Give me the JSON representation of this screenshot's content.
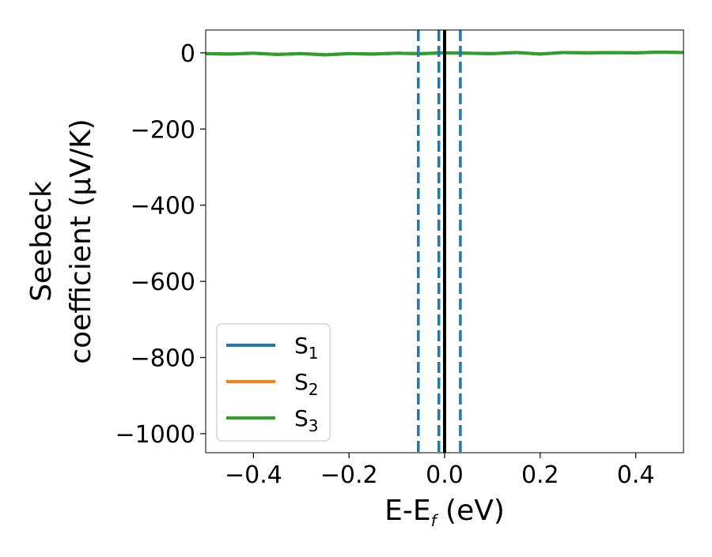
{
  "chart_data": {
    "type": "line",
    "xlabel": "E-E",
    "xlabel_sub": "f",
    "xlabel_unit": " (eV)",
    "ylabel_line1": "Seebeck",
    "ylabel_line2": "coefficient  (μV/K)",
    "xlim": [
      -0.5,
      0.5
    ],
    "ylim": [
      -1050,
      60
    ],
    "x_ticks": [
      -0.4,
      -0.2,
      0.0,
      0.2,
      0.4
    ],
    "x_tick_labels": [
      "−0.4",
      "−0.2",
      "0.0",
      "0.2",
      "0.4"
    ],
    "y_ticks": [
      0,
      -200,
      -400,
      -600,
      -800,
      -1000
    ],
    "y_tick_labels": [
      "0",
      "−200",
      "−400",
      "−600",
      "−800",
      "−1000"
    ],
    "grid": false,
    "legend_position": "lower-left",
    "legend": [
      {
        "base": "S",
        "sub": "1",
        "color": "#1f77b4"
      },
      {
        "base": "S",
        "sub": "2",
        "color": "#ff7f0e"
      },
      {
        "base": "S",
        "sub": "3",
        "color": "#2ca02c"
      }
    ],
    "series": [
      {
        "name": "S1",
        "color": "#1f77b4",
        "x": [
          -0.5,
          -0.45,
          -0.4,
          -0.35,
          -0.3,
          -0.25,
          -0.2,
          -0.15,
          -0.1,
          -0.05,
          0.0,
          0.05,
          0.1,
          0.15,
          0.2,
          0.25,
          0.3,
          0.35,
          0.4,
          0.45,
          0.5
        ],
        "y": [
          -2,
          -3,
          -1,
          -4,
          -2,
          -5,
          -2,
          -3,
          -1,
          -2,
          0,
          -1,
          -2,
          1,
          -3,
          1,
          0,
          1,
          0,
          2,
          1
        ]
      },
      {
        "name": "S2",
        "color": "#ff7f0e",
        "x": [
          -0.5,
          -0.45,
          -0.4,
          -0.35,
          -0.3,
          -0.25,
          -0.2,
          -0.15,
          -0.1,
          -0.05,
          0.0,
          0.05,
          0.1,
          0.15,
          0.2,
          0.25,
          0.3,
          0.35,
          0.4,
          0.45,
          0.5
        ],
        "y": [
          -2,
          -3,
          -1,
          -4,
          -2,
          -5,
          -2,
          -3,
          -1,
          -2,
          0,
          -1,
          -2,
          1,
          -3,
          1,
          0,
          1,
          0,
          2,
          1
        ]
      },
      {
        "name": "S3",
        "color": "#2ca02c",
        "x": [
          -0.5,
          -0.45,
          -0.4,
          -0.35,
          -0.3,
          -0.25,
          -0.2,
          -0.15,
          -0.1,
          -0.05,
          0.0,
          0.05,
          0.1,
          0.15,
          0.2,
          0.25,
          0.3,
          0.35,
          0.4,
          0.45,
          0.5
        ],
        "y": [
          -2,
          -3,
          -1,
          -4,
          -2,
          -5,
          -2,
          -3,
          -1,
          -2,
          0,
          -1,
          -2,
          1,
          -3,
          1,
          0,
          1,
          0,
          2,
          1
        ]
      }
    ],
    "vertical_lines": [
      {
        "x": -0.055,
        "style": "dashed",
        "color": "#1f77b4"
      },
      {
        "x": -0.012,
        "style": "dashed",
        "color": "#1f77b4"
      },
      {
        "x": 0.0,
        "style": "solid",
        "color": "#000000"
      },
      {
        "x": 0.033,
        "style": "dashed",
        "color": "#1f77b4"
      }
    ]
  }
}
